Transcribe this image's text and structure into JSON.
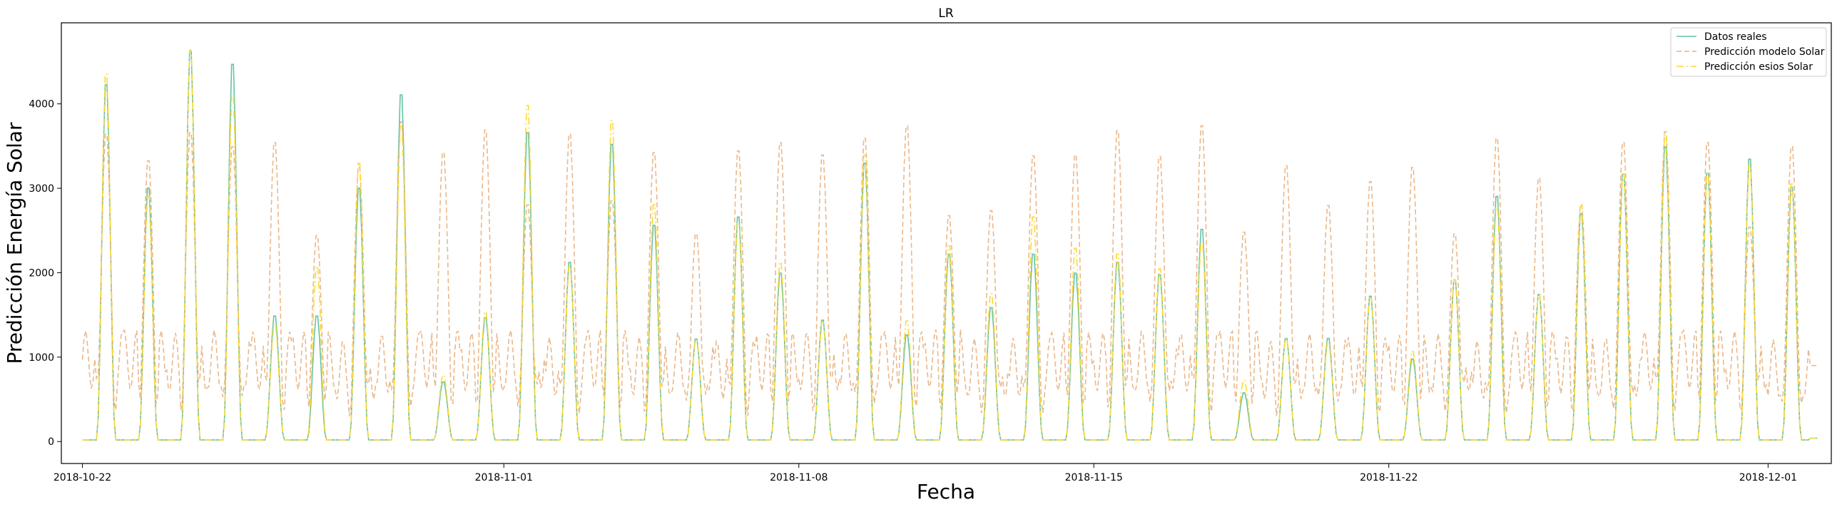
{
  "chart_data": {
    "type": "line",
    "title": "LR",
    "xlabel": "Fecha",
    "ylabel": "Predicción Energía Solar",
    "x_range": [
      "2018-10-21T12:00",
      "2018-12-02T12:00"
    ],
    "ylim": [
      -260,
      4960
    ],
    "x_ticks": [
      "2018-10-22",
      "2018-11-01",
      "2018-11-08",
      "2018-11-15",
      "2018-11-22",
      "2018-12-01"
    ],
    "y_ticks": [
      0,
      1000,
      2000,
      3000,
      4000
    ],
    "grid": false,
    "legend_position": "upper right",
    "start_date": "2018-10-22",
    "series": [
      {
        "name": "Datos reales",
        "color": "#66c2a5",
        "style": "solid",
        "daily_peaks": [
          4300,
          3050,
          4700,
          4550,
          1500,
          1500,
          3050,
          4180,
          700,
          1480,
          3720,
          2150,
          3580,
          2600,
          1220,
          2700,
          2020,
          1450,
          3350,
          1270,
          2250,
          1600,
          2250,
          2020,
          2150,
          2000,
          2550,
          570,
          1230,
          1230,
          1740,
          980,
          1940,
          2950,
          1760,
          2740,
          3220,
          3550,
          3230,
          3400,
          3060
        ]
      },
      {
        "name": "Predicción modelo Solar",
        "color": "#e8b07e",
        "style": "dashed",
        "daily_peaks": [
          3700,
          3380,
          3720,
          3550,
          3600,
          2480,
          3300,
          3850,
          3480,
          3750,
          2850,
          3700,
          2900,
          3480,
          2500,
          3500,
          3600,
          3450,
          3650,
          3800,
          2720,
          2780,
          3440,
          3450,
          3740,
          3430,
          3800,
          2520,
          3320,
          2840,
          3130,
          3300,
          2500,
          3650,
          3170,
          2850,
          3600,
          3730,
          3600,
          2580,
          3550
        ]
      },
      {
        "name": "Predicción esios Solar",
        "color": "#ffd92f",
        "style": "dashdot",
        "daily_peaks": [
          4430,
          2950,
          4720,
          4200,
          1400,
          2100,
          3350,
          3800,
          780,
          1550,
          4050,
          2100,
          3870,
          2850,
          1200,
          2620,
          2150,
          1420,
          3450,
          1440,
          2350,
          1770,
          2700,
          2320,
          2250,
          2070,
          2400,
          720,
          1230,
          1180,
          1720,
          1070,
          1940,
          2830,
          1760,
          2830,
          3220,
          3700,
          3230,
          3330,
          3100
        ]
      }
    ]
  }
}
